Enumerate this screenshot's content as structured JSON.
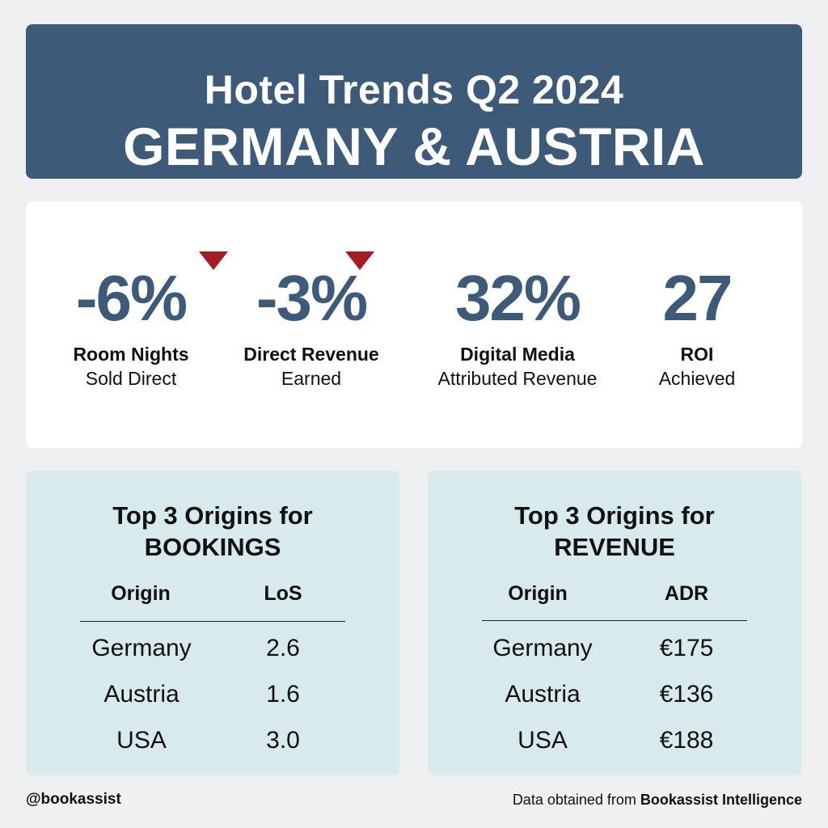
{
  "header": {
    "line1": "Hotel Trends Q2 2024",
    "line2": "GERMANY & AUSTRIA"
  },
  "stats": [
    {
      "value": "-6%",
      "label": "Room Nights",
      "sub": "Sold Direct",
      "trend": "down"
    },
    {
      "value": "-3%",
      "label": "Direct Revenue",
      "sub": "Earned",
      "trend": "down"
    },
    {
      "value": "32%",
      "label": "Digital Media",
      "sub": "Attributed Revenue",
      "trend": "none"
    },
    {
      "value": "27",
      "label": "ROI",
      "sub": "Achieved",
      "trend": "none"
    }
  ],
  "bookings": {
    "title_line1": "Top 3 Origins for",
    "title_line2": "BOOKINGS",
    "col1": "Origin",
    "col2": "LoS",
    "rows": [
      {
        "origin": "Germany",
        "value": "2.6"
      },
      {
        "origin": "Austria",
        "value": "1.6"
      },
      {
        "origin": "USA",
        "value": "3.0"
      }
    ]
  },
  "revenue": {
    "title_line1": "Top 3 Origins for",
    "title_line2": "REVENUE",
    "col1": "Origin",
    "col2": "ADR",
    "rows": [
      {
        "origin": "Germany",
        "value": "€175"
      },
      {
        "origin": "Austria",
        "value": "€136"
      },
      {
        "origin": "USA",
        "value": "€188"
      }
    ]
  },
  "footer": {
    "handle": "@bookassist",
    "source_prefix": "Data obtained from",
    "source_name": "Bookassist Intelligence"
  },
  "colors": {
    "header_bg": "#3d5a78",
    "accent_value": "#3d5a78",
    "down_arrow": "#a51d24",
    "card_bg": "#d8eaec"
  }
}
